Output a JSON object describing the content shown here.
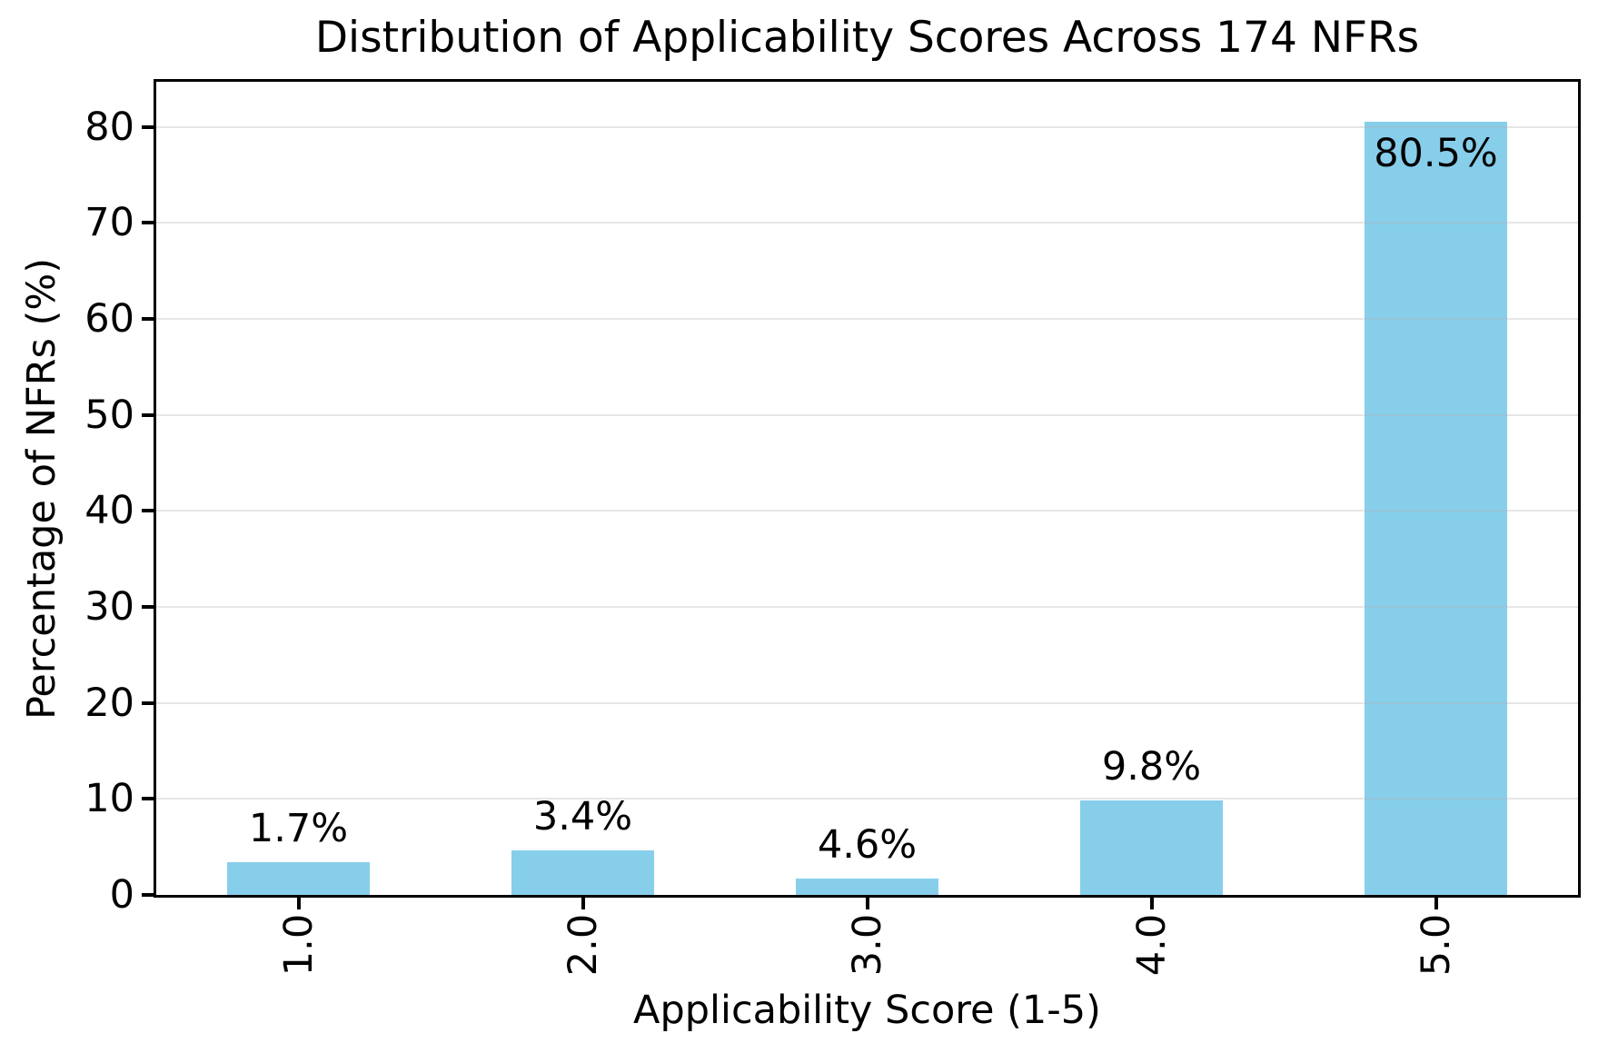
{
  "chart_data": {
    "type": "bar",
    "title": "Distribution of Applicability Scores Across 174 NFRs",
    "xlabel": "Applicability Score (1-5)",
    "ylabel": "Percentage of NFRs (%)",
    "categories": [
      "1.0",
      "2.0",
      "3.0",
      "4.0",
      "5.0"
    ],
    "series": [
      {
        "name": "Percentage of NFRs (%)",
        "values": [
          3.4,
          4.6,
          1.7,
          9.8,
          80.5
        ]
      }
    ],
    "bar_value_labels": [
      "1.7%",
      "3.4%",
      "4.6%",
      "9.8%",
      "80.5%"
    ],
    "yticks": [
      0,
      10,
      20,
      30,
      40,
      50,
      60,
      70,
      80
    ],
    "ylim": [
      0,
      84.7
    ],
    "grid": "horizontal",
    "legend": "none",
    "bar_color": "#87CEEB",
    "grid_color": "#b0b0b0",
    "axis_color": "#000000",
    "text_color": "#000000"
  }
}
